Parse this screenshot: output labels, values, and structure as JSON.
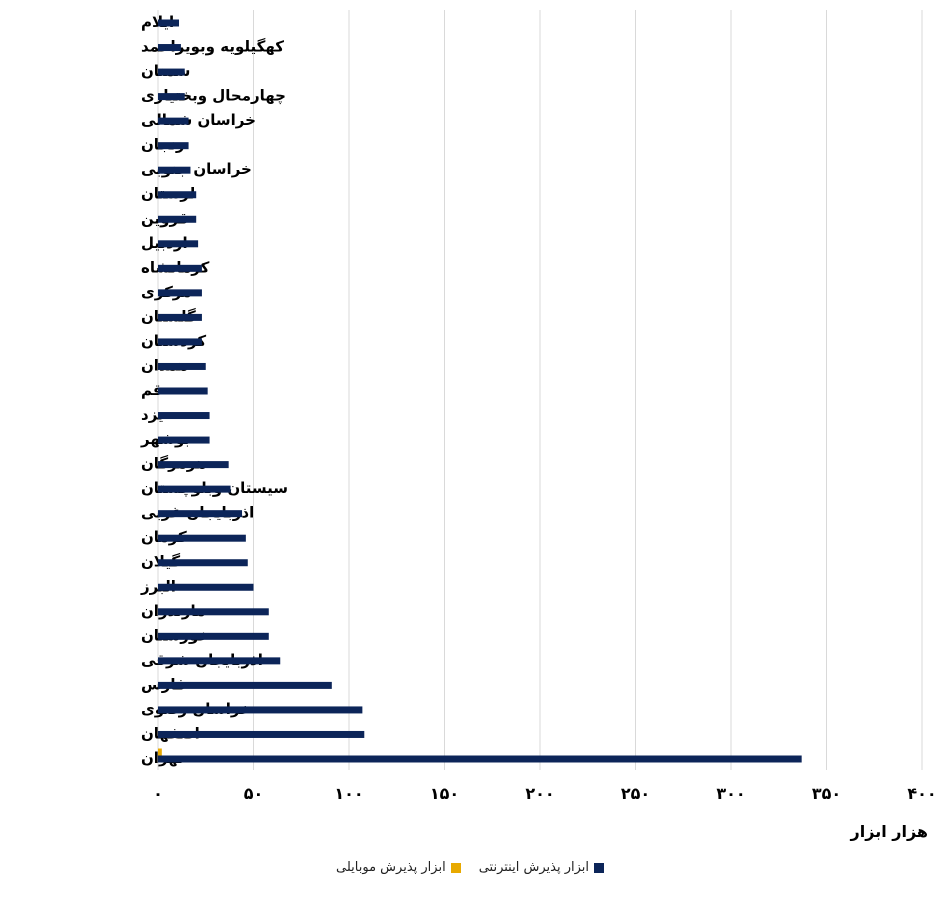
{
  "chart_data": {
    "type": "bar",
    "orientation": "horizontal",
    "xlabel": "هزار ابزار",
    "xlim": [
      0,
      400
    ],
    "x_ticks": [
      0,
      50,
      100,
      150,
      200,
      250,
      300,
      350,
      400
    ],
    "x_tick_labels": [
      "۰",
      "۵۰",
      "۱۰۰",
      "۱۵۰",
      "۲۰۰",
      "۲۵۰",
      "۳۰۰",
      "۳۵۰",
      "۴۰۰"
    ],
    "grid": true,
    "legend_position": "bottom",
    "categories": [
      "ایلام",
      "کهگیلویه وبویراحمد",
      "سمنان",
      "چهارمحال وبختیاری",
      "خراسان شمالی",
      "زنجان",
      "خراسان جنوبی",
      "لرستان",
      "قزوین",
      "اردبیل",
      "کرمانشاه",
      "مرکزی",
      "گلستان",
      "کردستان",
      "همدان",
      "قم",
      "یزد",
      "بوشهر",
      "هرمزگان",
      "سیستان وبلوچستان",
      "اذربایجان غربی",
      "کرمان",
      "گیلان",
      "البرز",
      "مازندران",
      "خوزستان",
      "اذربایجان شرقی",
      "فارس",
      "خراسان رضوی",
      "اصفهان",
      "تهران"
    ],
    "series": [
      {
        "name": "ابزار پذیرش اینترنتی",
        "color": "#0c2559",
        "values": [
          11,
          12,
          14,
          14,
          16,
          16,
          17,
          20,
          20,
          21,
          23,
          23,
          23,
          23,
          25,
          26,
          27,
          27,
          37,
          38,
          44,
          46,
          47,
          50,
          58,
          58,
          64,
          91,
          107,
          108,
          337
        ]
      },
      {
        "name": "ابزار پذیرش موبایلی",
        "color": "#e8a900",
        "values": [
          0,
          0,
          0,
          0,
          0,
          0,
          0,
          0,
          0,
          0,
          0,
          0,
          0,
          0,
          0,
          0,
          0,
          0,
          0,
          0,
          0,
          0,
          0,
          0,
          0,
          0,
          0,
          0,
          0,
          0,
          2
        ]
      }
    ]
  }
}
